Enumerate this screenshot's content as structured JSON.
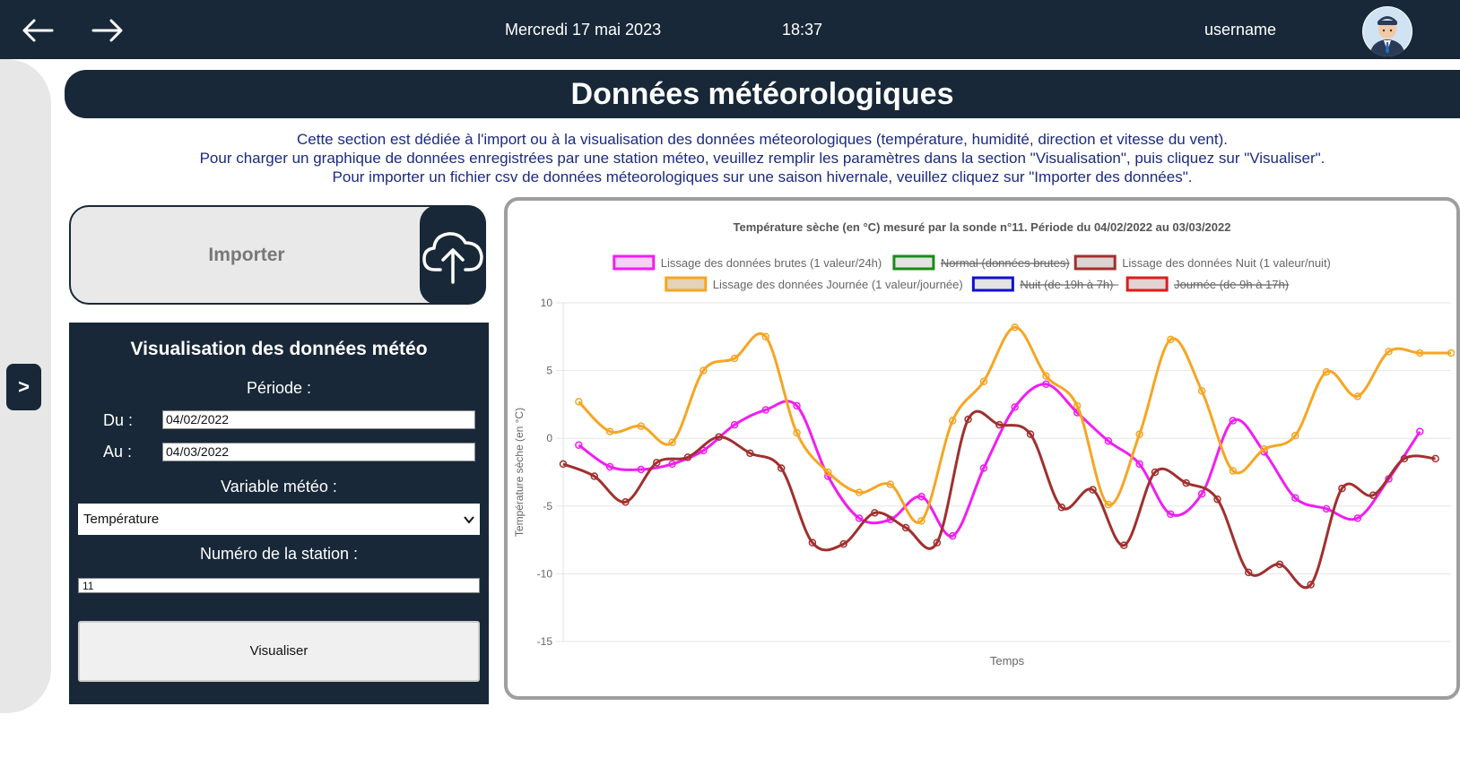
{
  "topbar": {
    "back_icon": "arrow-left-icon",
    "forward_icon": "arrow-right-icon",
    "date": "Mercredi 17 mai 2023",
    "time": "18:37",
    "username": "username",
    "avatar_icon": "user-avatar-icon"
  },
  "sidebar": {
    "toggle_label": ">"
  },
  "page": {
    "title": "Données météorologiques",
    "intro": [
      "Cette section est dédiée à l'import ou à la visualisation des données méteorologiques (température, humidité, direction et vitesse du vent).",
      "Pour charger un graphique de données enregistrées par une station méteo, veuillez remplir les paramètres dans la section \"Visualisation\", puis cliquez sur \"Visualiser\".",
      "Pour importer un fichier csv de données méteorologiques sur une saison hivernale, veuillez cliquez sur \"Importer des données\"."
    ]
  },
  "import": {
    "label": "Importer",
    "icon": "cloud-upload-icon"
  },
  "viz": {
    "title": "Visualisation des données météo",
    "period_label": "Période :",
    "from_label": "Du :",
    "from_value": "04/02/2022",
    "to_label": "Au :",
    "to_value": "04/03/2022",
    "variable_label": "Variable météo :",
    "variable_value": "Température",
    "station_label": "Numéro de la station :",
    "station_value": "11",
    "button_label": "Visualiser"
  },
  "colors": {
    "navy": "#182838",
    "magenta": "#f01ef0",
    "orange": "#f5a623",
    "brown": "#a0302e",
    "green": "#1a8a1a",
    "blue": "#1010d0",
    "red": "#e01b1b"
  },
  "chart_data": {
    "type": "line",
    "title": "Température sèche (en °C) mesuré par la sonde n°11. Période du 04/02/2022 au 03/03/2022",
    "xlabel": "Temps",
    "ylabel": "Température sèche (en °C)",
    "ylim": [
      -15,
      10
    ],
    "yticks": [
      10,
      5,
      0,
      -5,
      -10,
      -15
    ],
    "grid": true,
    "legend_position": "top",
    "legend": [
      {
        "name": "Lissage des données brutes (1 valeur/24h)",
        "color": "#f01ef0",
        "fill": "#f3d2f3",
        "hidden": false
      },
      {
        "name": "Normal (données brutes)",
        "color": "#1a8a1a",
        "fill": "#e3e3e3",
        "hidden": true
      },
      {
        "name": "Lissage des données Nuit (1 valeur/nuit)",
        "color": "#a0302e",
        "fill": "#dcd3d3",
        "hidden": false
      },
      {
        "name": "Lissage des données Journée (1 valeur/journée)",
        "color": "#f5a623",
        "fill": "#e3d3b8",
        "hidden": false
      },
      {
        "name": "Nuit (de 19h à 7h)",
        "color": "#1010d0",
        "fill": "#e3e3e3",
        "hidden": true
      },
      {
        "name": "Journée (de 9h à 17h)",
        "color": "#e01b1b",
        "fill": "#e3d3d3",
        "hidden": true
      }
    ],
    "series": [
      {
        "name": "Lissage des données brutes (1 valeur/24h)",
        "color": "#f01ef0",
        "x": [
          1,
          3,
          5,
          7,
          9,
          11,
          13,
          15,
          17,
          19,
          21,
          23,
          25,
          27,
          29,
          31,
          33,
          35,
          37,
          39,
          41,
          43,
          45,
          47,
          49,
          51,
          53,
          55
        ],
        "values": [
          -0.5,
          -2.1,
          -2.3,
          -1.9,
          -0.9,
          1.0,
          2.1,
          2.4,
          -2.8,
          -5.9,
          -6.0,
          -4.3,
          -7.2,
          -2.2,
          2.3,
          4.0,
          1.9,
          -0.2,
          -1.9,
          -5.6,
          -4.1,
          1.3,
          -1.0,
          -4.4,
          -5.2,
          -5.9,
          -3.0,
          0.5
        ]
      },
      {
        "name": "Lissage des données Nuit (1 valeur/nuit)",
        "color": "#a0302e",
        "x": [
          0,
          2,
          4,
          6,
          8,
          10,
          12,
          14,
          16,
          18,
          20,
          22,
          24,
          26,
          28,
          30,
          32,
          34,
          36,
          38,
          40,
          42,
          44,
          46,
          48,
          50,
          52,
          54,
          56
        ],
        "values": [
          -1.9,
          -2.8,
          -4.7,
          -1.8,
          -1.4,
          0.1,
          -1.1,
          -2.2,
          -7.7,
          -7.8,
          -5.5,
          -6.6,
          -7.7,
          1.4,
          1.0,
          0.3,
          -5.1,
          -3.8,
          -7.9,
          -2.5,
          -3.3,
          -4.5,
          -9.9,
          -9.3,
          -10.8,
          -3.7,
          -4.2,
          -1.5,
          -1.5
        ]
      },
      {
        "name": "Lissage des données Journée (1 valeur/journée)",
        "color": "#f5a623",
        "x": [
          1,
          3,
          5,
          7,
          9,
          11,
          13,
          15,
          17,
          19,
          21,
          23,
          25,
          27,
          29,
          31,
          33,
          35,
          37,
          39,
          41,
          43,
          45,
          47,
          49,
          51,
          53,
          55,
          57
        ],
        "values": [
          2.7,
          0.5,
          0.9,
          -0.3,
          5.0,
          5.9,
          7.5,
          0.4,
          -2.5,
          -4.0,
          -3.4,
          -6.1,
          1.3,
          4.2,
          8.2,
          4.6,
          2.4,
          -4.9,
          0.3,
          7.3,
          3.5,
          -2.4,
          -0.8,
          0.2,
          4.9,
          3.1,
          6.4,
          6.3,
          6.3
        ]
      }
    ]
  }
}
